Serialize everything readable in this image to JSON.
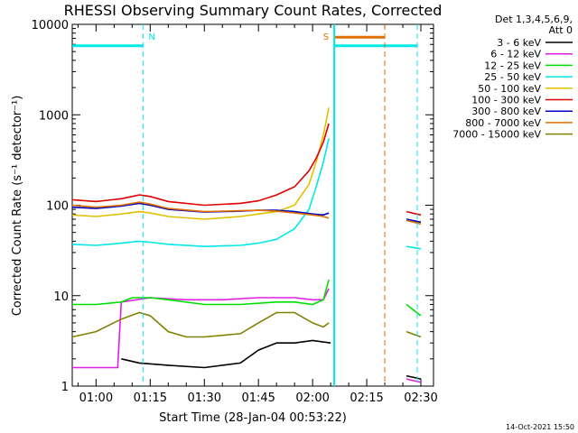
{
  "chart_data": {
    "type": "line",
    "title": "RHESSI Observing Summary Count Rates, Corrected",
    "xlabel": "Start Time (28-Jan-04 00:53:22)",
    "ylabel": "Corrected Count Rate (s⁻¹ detector⁻¹)",
    "yscale": "log",
    "ylim": [
      1,
      10000
    ],
    "xlim_minutes": [
      53.4,
      153.5
    ],
    "x_ticks": [
      {
        "label": "01:00",
        "minutes": 60
      },
      {
        "label": "01:15",
        "minutes": 75
      },
      {
        "label": "01:30",
        "minutes": 90
      },
      {
        "label": "01:45",
        "minutes": 105
      },
      {
        "label": "02:00",
        "minutes": 120
      },
      {
        "label": "02:15",
        "minutes": 135
      },
      {
        "label": "02:30",
        "minutes": 150
      }
    ],
    "y_ticks": [
      {
        "label": "1",
        "value": 1
      },
      {
        "label": "10",
        "value": 10
      },
      {
        "label": "100",
        "value": 100
      },
      {
        "label": "1000",
        "value": 1000
      },
      {
        "label": "10000",
        "value": 10000
      }
    ],
    "legend_header": [
      "Det 1,3,4,5,6,9,",
      "Att 0"
    ],
    "legend_position": "right",
    "series": [
      {
        "name": "3 - 6 keV",
        "color": "#000000",
        "points": [
          [
            67,
            2.0
          ],
          [
            72,
            1.8
          ],
          [
            80,
            1.7
          ],
          [
            90,
            1.6
          ],
          [
            100,
            1.8
          ],
          [
            105,
            2.5
          ],
          [
            110,
            3.0
          ],
          [
            115,
            3.0
          ],
          [
            120,
            3.2
          ],
          [
            125,
            3.0
          ]
        ],
        "post": [
          [
            146,
            1.3
          ],
          [
            150,
            1.2
          ]
        ]
      },
      {
        "name": "6 - 12 keV",
        "color": "#e020e0",
        "points": [
          [
            53.4,
            1.6
          ],
          [
            60,
            1.6
          ],
          [
            66,
            1.6
          ],
          [
            67,
            8.5
          ],
          [
            75,
            9.5
          ],
          [
            85,
            9.0
          ],
          [
            95,
            9.0
          ],
          [
            105,
            9.5
          ],
          [
            115,
            9.5
          ],
          [
            120,
            9.0
          ],
          [
            123,
            9.0
          ],
          [
            124.5,
            12
          ]
        ],
        "post": [
          [
            146,
            1.2
          ],
          [
            150,
            1.1
          ]
        ]
      },
      {
        "name": "12 - 25 keV",
        "color": "#00e000",
        "points": [
          [
            53.4,
            8.0
          ],
          [
            60,
            8.0
          ],
          [
            67,
            8.5
          ],
          [
            70,
            9.5
          ],
          [
            75,
            9.5
          ],
          [
            80,
            9.0
          ],
          [
            90,
            8.0
          ],
          [
            100,
            8.0
          ],
          [
            110,
            8.5
          ],
          [
            115,
            8.5
          ],
          [
            120,
            8.0
          ],
          [
            123,
            9.0
          ],
          [
            124.5,
            15
          ]
        ],
        "post": [
          [
            146,
            8.0
          ],
          [
            150,
            6.0
          ]
        ]
      },
      {
        "name": "25 - 50 keV",
        "color": "#00e8e8",
        "points": [
          [
            53.4,
            37
          ],
          [
            60,
            36
          ],
          [
            67,
            38
          ],
          [
            72,
            40
          ],
          [
            75,
            39
          ],
          [
            80,
            37
          ],
          [
            90,
            35
          ],
          [
            100,
            36
          ],
          [
            105,
            38
          ],
          [
            110,
            42
          ],
          [
            115,
            55
          ],
          [
            119,
            90
          ],
          [
            121,
            160
          ],
          [
            123,
            300
          ],
          [
            124.5,
            550
          ]
        ],
        "post": [
          [
            146,
            35
          ],
          [
            150,
            33
          ]
        ]
      },
      {
        "name": "50 - 100 keV",
        "color": "#e0c000",
        "points": [
          [
            53.4,
            78
          ],
          [
            60,
            75
          ],
          [
            67,
            80
          ],
          [
            72,
            85
          ],
          [
            75,
            82
          ],
          [
            80,
            75
          ],
          [
            90,
            70
          ],
          [
            100,
            75
          ],
          [
            105,
            80
          ],
          [
            110,
            85
          ],
          [
            115,
            100
          ],
          [
            119,
            170
          ],
          [
            121,
            300
          ],
          [
            123,
            600
          ],
          [
            124.5,
            1200
          ]
        ],
        "post": [
          [
            146,
            70
          ],
          [
            150,
            65
          ]
        ]
      },
      {
        "name": "100 - 300 keV",
        "color": "#e00000",
        "points": [
          [
            53.4,
            115
          ],
          [
            60,
            110
          ],
          [
            67,
            118
          ],
          [
            72,
            130
          ],
          [
            75,
            125
          ],
          [
            80,
            110
          ],
          [
            90,
            100
          ],
          [
            100,
            105
          ],
          [
            105,
            112
          ],
          [
            110,
            130
          ],
          [
            115,
            160
          ],
          [
            119,
            240
          ],
          [
            121,
            330
          ],
          [
            123,
            500
          ],
          [
            124.5,
            800
          ]
        ],
        "post": [
          [
            146,
            85
          ],
          [
            150,
            78
          ]
        ]
      },
      {
        "name": "300 - 800 keV",
        "color": "#0000c0",
        "points": [
          [
            53.4,
            95
          ],
          [
            60,
            92
          ],
          [
            67,
            98
          ],
          [
            72,
            105
          ],
          [
            75,
            100
          ],
          [
            80,
            90
          ],
          [
            90,
            84
          ],
          [
            100,
            86
          ],
          [
            105,
            88
          ],
          [
            110,
            88
          ],
          [
            115,
            85
          ],
          [
            120,
            80
          ],
          [
            123,
            78
          ],
          [
            124.5,
            82
          ]
        ],
        "post": [
          [
            146,
            70
          ],
          [
            150,
            65
          ]
        ]
      },
      {
        "name": "800 - 7000 keV",
        "color": "#e07000",
        "points": [
          [
            53.4,
            100
          ],
          [
            60,
            95
          ],
          [
            67,
            100
          ],
          [
            72,
            108
          ],
          [
            75,
            103
          ],
          [
            80,
            92
          ],
          [
            90,
            85
          ],
          [
            100,
            87
          ],
          [
            105,
            88
          ],
          [
            110,
            86
          ],
          [
            115,
            82
          ],
          [
            120,
            78
          ],
          [
            123,
            75
          ],
          [
            124.5,
            72
          ]
        ],
        "post": [
          [
            146,
            68
          ],
          [
            150,
            62
          ]
        ]
      },
      {
        "name": "7000 - 15000 keV",
        "color": "#808000",
        "points": [
          [
            53.4,
            3.5
          ],
          [
            60,
            4.0
          ],
          [
            67,
            5.5
          ],
          [
            72,
            6.5
          ],
          [
            75,
            6.0
          ],
          [
            80,
            4.0
          ],
          [
            85,
            3.5
          ],
          [
            90,
            3.5
          ],
          [
            100,
            3.8
          ],
          [
            105,
            5.0
          ],
          [
            110,
            6.5
          ],
          [
            115,
            6.5
          ],
          [
            120,
            5.0
          ],
          [
            123,
            4.5
          ],
          [
            124.5,
            5.0
          ]
        ],
        "post": [
          [
            146,
            4.0
          ],
          [
            150,
            3.5
          ]
        ]
      }
    ],
    "annotations": [
      {
        "label": "N",
        "color": "#00e8e8",
        "minutes": 73,
        "bar_start": 53.4,
        "bar_end": 73,
        "bar_value": 5800
      },
      {
        "label": "S",
        "color": "#e07000",
        "minutes": 126,
        "bar_start": 126,
        "bar_end": 140,
        "bar_value": 7200
      }
    ],
    "gap_lines": [
      {
        "color": "#00e8e8",
        "minutes": 126,
        "style": "solid"
      },
      {
        "color": "#e07000",
        "minutes": 140,
        "style": "dashed"
      },
      {
        "color": "#00e8e8",
        "minutes": 149,
        "style": "dashed"
      }
    ],
    "cyan_bar_after_gap": {
      "bar_start": 126,
      "bar_end": 149,
      "bar_value": 5800
    },
    "footer_date": "14-Oct-2021 15:50"
  }
}
